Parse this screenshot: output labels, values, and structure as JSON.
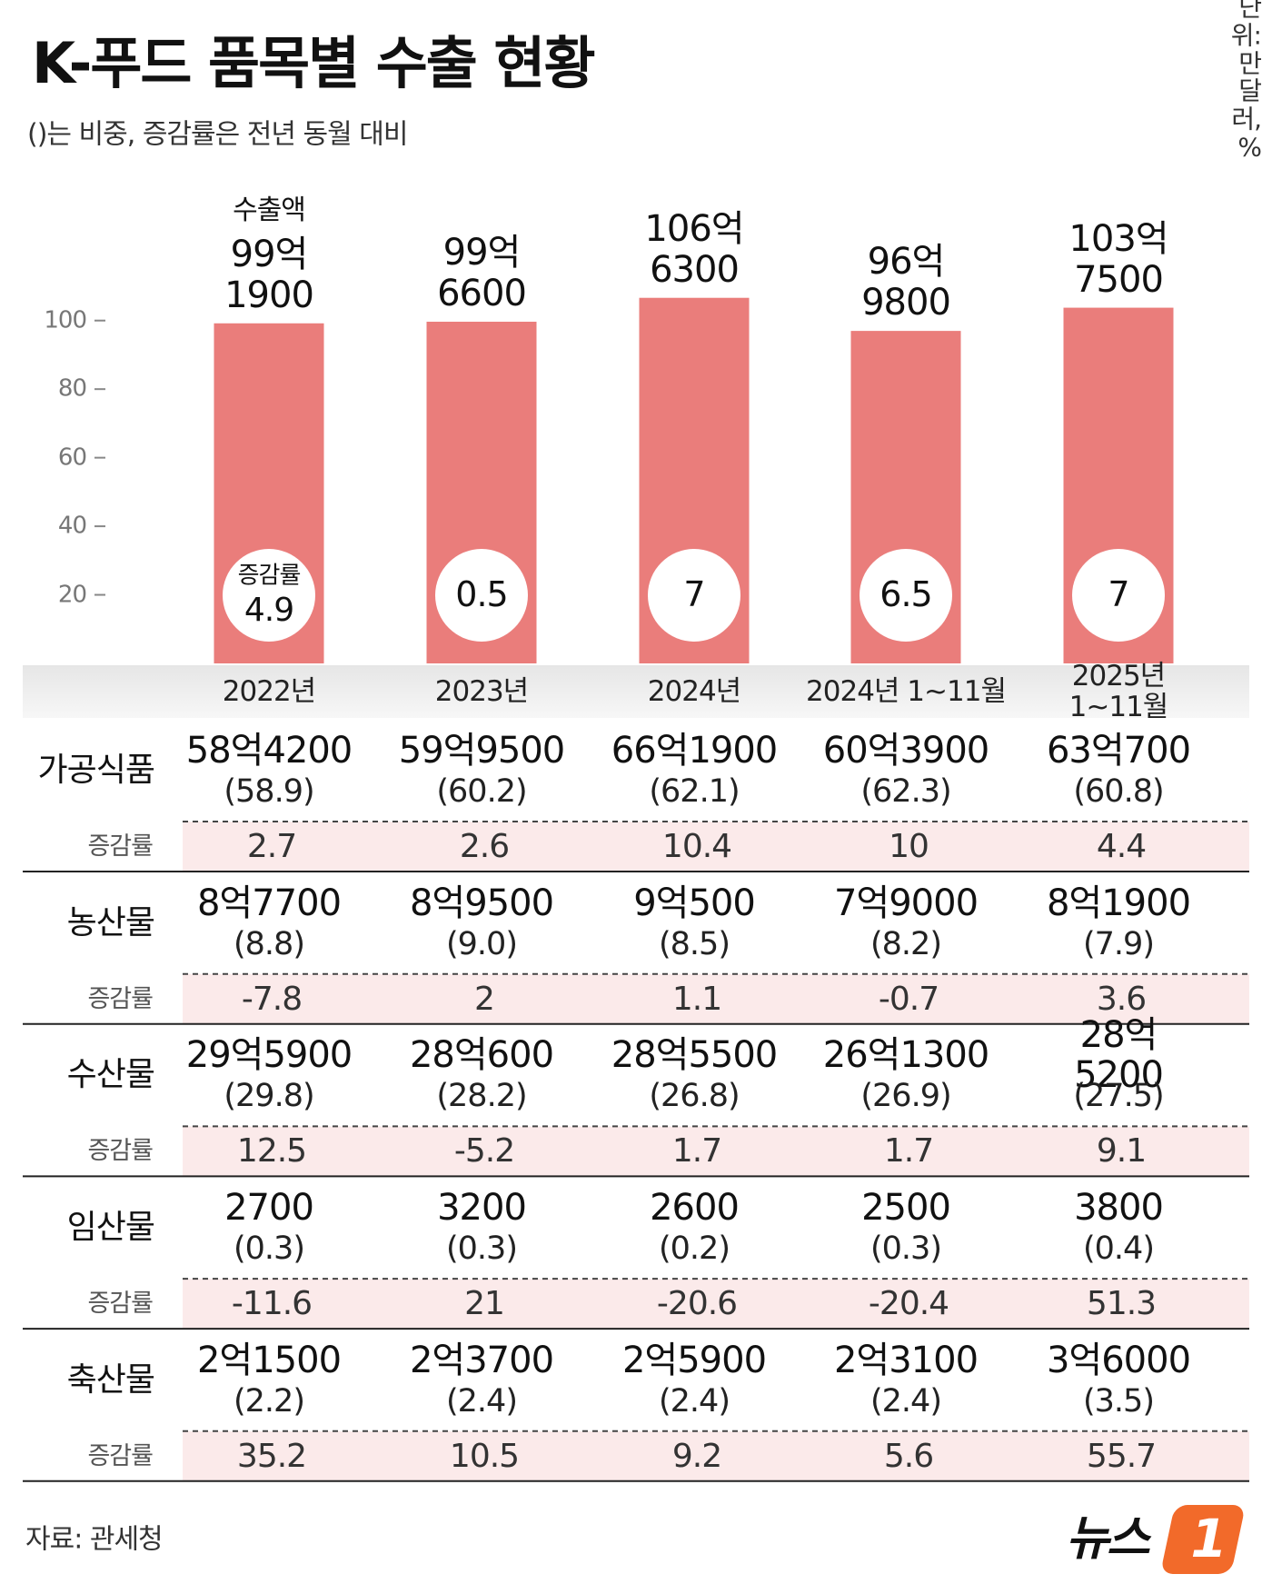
{
  "chart_data": {
    "type": "bar",
    "title": "K-푸드 품목별 수출 현황",
    "subtitle": "()는 비중, 증감률은 전년 동월 대비",
    "unit": "단위: 만 달러, %",
    "value_caption": "수출액",
    "categories": [
      "2022년",
      "2023년",
      "2024년",
      "2024년 1~11월",
      "2025년 1~11월"
    ],
    "values": [
      99.19,
      99.66,
      106.63,
      96.98,
      103.75
    ],
    "value_labels": [
      "99억\n1900",
      "99억\n6600",
      "106억\n6300",
      "96억\n9800",
      "103억\n7500"
    ],
    "color": "#ea7d7b",
    "ylim": [
      0,
      110
    ],
    "yticks": [
      20,
      40,
      60,
      80,
      100
    ],
    "growth_label": "증감률",
    "growth": [
      4.9,
      0.5,
      7,
      6.5,
      7
    ]
  },
  "table": {
    "growth_label": "증감률",
    "rows": [
      {
        "name": "가공식품",
        "cells": [
          {
            "amount": "58억4200",
            "share": "(58.9)",
            "growth": 2.7
          },
          {
            "amount": "59억9500",
            "share": "(60.2)",
            "growth": 2.6
          },
          {
            "amount": "66억1900",
            "share": "(62.1)",
            "growth": 10.4
          },
          {
            "amount": "60억3900",
            "share": "(62.3)",
            "growth": 10
          },
          {
            "amount": "63억700",
            "share": "(60.8)",
            "growth": 4.4
          }
        ]
      },
      {
        "name": "농산물",
        "cells": [
          {
            "amount": "8억7700",
            "share": "(8.8)",
            "growth": -7.8
          },
          {
            "amount": "8억9500",
            "share": "(9.0)",
            "growth": 2
          },
          {
            "amount": "9억500",
            "share": "(8.5)",
            "growth": 1.1
          },
          {
            "amount": "7억9000",
            "share": "(8.2)",
            "growth": -0.7
          },
          {
            "amount": "8억1900",
            "share": "(7.9)",
            "growth": 3.6
          }
        ]
      },
      {
        "name": "수산물",
        "cells": [
          {
            "amount": "29억5900",
            "share": "(29.8)",
            "growth": 12.5
          },
          {
            "amount": "28억600",
            "share": "(28.2)",
            "growth": -5.2
          },
          {
            "amount": "28억5500",
            "share": "(26.8)",
            "growth": 1.7
          },
          {
            "amount": "26억1300",
            "share": "(26.9)",
            "growth": 1.7
          },
          {
            "amount": "28억5200",
            "share": "(27.5)",
            "growth": 9.1
          }
        ]
      },
      {
        "name": "임산물",
        "cells": [
          {
            "amount": "2700",
            "share": "(0.3)",
            "growth": -11.6
          },
          {
            "amount": "3200",
            "share": "(0.3)",
            "growth": 21
          },
          {
            "amount": "2600",
            "share": "(0.2)",
            "growth": -20.6
          },
          {
            "amount": "2500",
            "share": "(0.3)",
            "growth": -20.4
          },
          {
            "amount": "3800",
            "share": "(0.4)",
            "growth": 51.3
          }
        ]
      },
      {
        "name": "축산물",
        "cells": [
          {
            "amount": "2억1500",
            "share": "(2.2)",
            "growth": 35.2
          },
          {
            "amount": "2억3700",
            "share": "(2.4)",
            "growth": 10.5
          },
          {
            "amount": "2억5900",
            "share": "(2.4)",
            "growth": 9.2
          },
          {
            "amount": "2억3100",
            "share": "(2.4)",
            "growth": 5.6
          },
          {
            "amount": "3억6000",
            "share": "(3.5)",
            "growth": 55.7
          }
        ]
      }
    ]
  },
  "footer": {
    "source": "자료: 관세청",
    "logo_text": "뉴스",
    "logo_mark": "1"
  }
}
